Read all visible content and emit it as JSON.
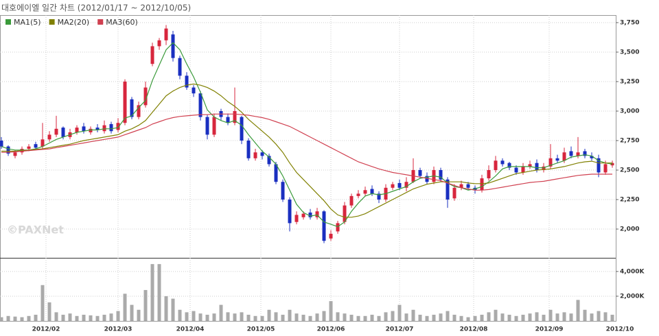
{
  "chart_data": {
    "type": "candlestick",
    "title": "대호에이엘 일간 차트 (2012/01/17 ~ 2012/10/05)",
    "watermark": "©PAXNet",
    "xlim": [
      -0.2,
      89.5
    ],
    "xticks": [
      {
        "value": 6.5,
        "label": "2012/02"
      },
      {
        "value": 17,
        "label": "2012/03"
      },
      {
        "value": 27.5,
        "label": "2012/04"
      },
      {
        "value": 37.8,
        "label": "2012/05"
      },
      {
        "value": 48,
        "label": "2012/06"
      },
      {
        "value": 58,
        "label": "2012/07"
      },
      {
        "value": 68.8,
        "label": "2012/08"
      },
      {
        "value": 79.8,
        "label": "2012/09"
      },
      {
        "value": 90.1,
        "label": "2012/10"
      }
    ],
    "ylim": [
      1756,
      3814
    ],
    "yticks": [
      {
        "value": 2000,
        "label": "2,000"
      },
      {
        "value": 2250,
        "label": "2,250"
      },
      {
        "value": 2500,
        "label": "2,500"
      },
      {
        "value": 2750,
        "label": "2,750"
      },
      {
        "value": 3000,
        "label": "3,000"
      },
      {
        "value": 3250,
        "label": "3,250"
      },
      {
        "value": 3500,
        "label": "3,500"
      },
      {
        "value": 3750,
        "label": "3,750"
      }
    ],
    "grid": true,
    "up_color": "#d7263d",
    "down_color": "#1a2fc0",
    "open": [
      2750,
      2700,
      2620,
      2650,
      2680,
      2720,
      2700,
      2760,
      2800,
      2860,
      2780,
      2820,
      2870,
      2820,
      2860,
      2830,
      2890,
      2840,
      2900,
      3100,
      2950,
      3050,
      3400,
      3550,
      3600,
      3650,
      3450,
      3300,
      3200,
      3150,
      2950,
      2800,
      3000,
      2950,
      2900,
      2950,
      2750,
      2600,
      2650,
      2620,
      2550,
      2400,
      2250,
      2060,
      2100,
      2140,
      2100,
      2150,
      1920,
      1980,
      2060,
      2200,
      2280,
      2300,
      2340,
      2300,
      2250,
      2350,
      2390,
      2350,
      2400,
      2500,
      2450,
      2400,
      2500,
      2420,
      2260,
      2350,
      2380,
      2350,
      2330,
      2430,
      2500,
      2580,
      2560,
      2520,
      2480,
      2530,
      2560,
      2500,
      2530,
      2600,
      2580,
      2660,
      2620,
      2660,
      2620,
      2600,
      2480,
      2540
    ],
    "high": [
      2780,
      2710,
      2670,
      2700,
      2720,
      2740,
      2900,
      2830,
      2960,
      2870,
      2850,
      2880,
      2900,
      2870,
      2890,
      2920,
      2910,
      2940,
      3270,
      3120,
      3080,
      3250,
      3580,
      3620,
      3730,
      3680,
      3470,
      3330,
      3220,
      3170,
      2970,
      2980,
      3020,
      2980,
      3200,
      2960,
      2770,
      2680,
      2670,
      2640,
      2570,
      2420,
      2270,
      2150,
      2150,
      2170,
      2180,
      2160,
      1990,
      2070,
      2230,
      2300,
      2330,
      2360,
      2370,
      2320,
      2380,
      2400,
      2420,
      2440,
      2600,
      2520,
      2480,
      2530,
      2520,
      2440,
      2380,
      2410,
      2400,
      2370,
      2460,
      2540,
      2620,
      2600,
      2570,
      2540,
      2560,
      2580,
      2590,
      2560,
      2720,
      2630,
      2690,
      2700,
      2780,
      2680,
      2650,
      2630,
      2580,
      2580
    ],
    "low": [
      2680,
      2620,
      2600,
      2630,
      2660,
      2670,
      2680,
      2740,
      2780,
      2760,
      2760,
      2800,
      2810,
      2800,
      2820,
      2810,
      2810,
      2820,
      2880,
      2930,
      2930,
      3030,
      3380,
      3520,
      3560,
      3420,
      3270,
      3180,
      3120,
      2920,
      2760,
      2780,
      2920,
      2880,
      2880,
      2720,
      2580,
      2580,
      2590,
      2530,
      2380,
      2230,
      1980,
      2040,
      2080,
      2080,
      2080,
      1880,
      1900,
      1960,
      2040,
      2180,
      2260,
      2280,
      2280,
      2220,
      2230,
      2330,
      2330,
      2320,
      2390,
      2430,
      2380,
      2380,
      2400,
      2180,
      2240,
      2330,
      2330,
      2300,
      2310,
      2410,
      2480,
      2530,
      2500,
      2460,
      2460,
      2510,
      2480,
      2480,
      2510,
      2560,
      2560,
      2600,
      2600,
      2600,
      2580,
      2440,
      2460,
      2520
    ],
    "close": [
      2700,
      2640,
      2650,
      2680,
      2700,
      2690,
      2760,
      2800,
      2850,
      2780,
      2820,
      2860,
      2830,
      2850,
      2840,
      2880,
      2830,
      2900,
      3250,
      2950,
      3050,
      3200,
      3550,
      3600,
      3700,
      3450,
      3300,
      3200,
      3150,
      2950,
      2800,
      2950,
      2950,
      2900,
      3000,
      2750,
      2600,
      2650,
      2620,
      2550,
      2400,
      2250,
      2050,
      2120,
      2130,
      2100,
      2150,
      1900,
      1960,
      2050,
      2200,
      2280,
      2300,
      2330,
      2300,
      2250,
      2350,
      2380,
      2350,
      2400,
      2500,
      2450,
      2400,
      2500,
      2420,
      2250,
      2350,
      2380,
      2350,
      2330,
      2430,
      2500,
      2580,
      2550,
      2520,
      2480,
      2530,
      2550,
      2500,
      2530,
      2600,
      2580,
      2650,
      2620,
      2650,
      2620,
      2600,
      2480,
      2550,
      2560
    ],
    "series": [
      {
        "name": "MA1(5)",
        "color": "#3a9a3a",
        "values": [
          2700,
          2680,
          2670,
          2670,
          2670,
          2680,
          2700,
          2730,
          2760,
          2780,
          2800,
          2820,
          2830,
          2840,
          2840,
          2850,
          2850,
          2860,
          2940,
          2960,
          3030,
          3090,
          3260,
          3390,
          3520,
          3580,
          3520,
          3400,
          3290,
          3160,
          3010,
          2950,
          2920,
          2900,
          2920,
          2880,
          2800,
          2730,
          2660,
          2610,
          2550,
          2450,
          2330,
          2210,
          2140,
          2110,
          2120,
          2060,
          2040,
          2020,
          2060,
          2150,
          2220,
          2280,
          2300,
          2290,
          2300,
          2320,
          2340,
          2360,
          2400,
          2430,
          2440,
          2450,
          2440,
          2390,
          2360,
          2350,
          2330,
          2340,
          2360,
          2400,
          2450,
          2510,
          2530,
          2530,
          2530,
          2530,
          2520,
          2520,
          2540,
          2560,
          2580,
          2610,
          2620,
          2630,
          2620,
          2580,
          2560,
          2550
        ]
      },
      {
        "name": "MA2(20)",
        "color": "#808000",
        "values": [
          2660,
          2660,
          2660,
          2665,
          2670,
          2675,
          2680,
          2690,
          2700,
          2710,
          2720,
          2735,
          2750,
          2760,
          2770,
          2780,
          2790,
          2800,
          2830,
          2850,
          2880,
          2920,
          2990,
          3060,
          3130,
          3170,
          3200,
          3220,
          3230,
          3220,
          3200,
          3170,
          3130,
          3080,
          3040,
          2990,
          2930,
          2880,
          2830,
          2780,
          2720,
          2650,
          2560,
          2480,
          2420,
          2360,
          2300,
          2240,
          2170,
          2120,
          2100,
          2100,
          2110,
          2130,
          2160,
          2190,
          2220,
          2250,
          2280,
          2310,
          2340,
          2360,
          2380,
          2390,
          2400,
          2400,
          2400,
          2400,
          2390,
          2385,
          2385,
          2390,
          2410,
          2430,
          2450,
          2470,
          2480,
          2490,
          2500,
          2505,
          2510,
          2520,
          2530,
          2545,
          2560,
          2570,
          2575,
          2560,
          2560,
          2560
        ]
      },
      {
        "name": "MA3(60)",
        "color": "#d04050",
        "values": [
          2650,
          2650,
          2655,
          2660,
          2665,
          2670,
          2675,
          2680,
          2690,
          2700,
          2710,
          2720,
          2730,
          2740,
          2750,
          2760,
          2770,
          2780,
          2800,
          2820,
          2840,
          2860,
          2890,
          2910,
          2930,
          2945,
          2955,
          2960,
          2965,
          2970,
          2970,
          2975,
          2975,
          2975,
          2975,
          2970,
          2965,
          2955,
          2945,
          2930,
          2910,
          2890,
          2870,
          2840,
          2810,
          2780,
          2750,
          2720,
          2690,
          2660,
          2630,
          2600,
          2570,
          2550,
          2530,
          2510,
          2495,
          2480,
          2470,
          2460,
          2450,
          2440,
          2430,
          2420,
          2410,
          2390,
          2370,
          2350,
          2340,
          2330,
          2330,
          2335,
          2345,
          2355,
          2365,
          2375,
          2385,
          2395,
          2400,
          2405,
          2415,
          2425,
          2435,
          2445,
          2455,
          2460,
          2465,
          2465,
          2465,
          2465
        ]
      }
    ],
    "volume": {
      "color": "#aaaaaa",
      "ylim": [
        0,
        5050
      ],
      "yticks": [
        {
          "value": 2000,
          "label": "2,000K"
        },
        {
          "value": 4000,
          "label": "4,000K"
        }
      ],
      "values": [
        300,
        400,
        350,
        300,
        400,
        500,
        2900,
        1500,
        700,
        500,
        600,
        400,
        500,
        450,
        400,
        500,
        600,
        800,
        2200,
        1300,
        900,
        2500,
        4600,
        4600,
        2000,
        1800,
        900,
        700,
        800,
        600,
        500,
        600,
        1300,
        700,
        600,
        700,
        500,
        400,
        400,
        900,
        700,
        500,
        900,
        600,
        500,
        400,
        600,
        800,
        1600,
        700,
        600,
        500,
        400,
        400,
        500,
        400,
        700,
        800,
        1300,
        600,
        900,
        500,
        400,
        500,
        600,
        800,
        500,
        400,
        300,
        400,
        500,
        700,
        900,
        600,
        500,
        400,
        500,
        600,
        700,
        500,
        900,
        600,
        700,
        600,
        1700,
        900,
        600,
        800,
        700,
        500
      ]
    }
  }
}
